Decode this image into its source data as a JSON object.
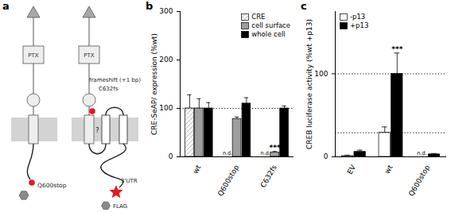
{
  "diagram": {
    "title": "a",
    "receptors": [
      {
        "domain": "PTX",
        "mutation": "Q600stop"
      },
      {
        "domain": "PTX",
        "mutation": "frameshift (+1 bp)",
        "site": "C632fs",
        "unknown": "?",
        "extension": "3'UTR",
        "tag": "FLAG"
      }
    ]
  },
  "chart_data": [
    {
      "type": "bar",
      "title": "b",
      "y_label": "CRE-SeAP/ expression (%wt)",
      "categories": [
        "wt",
        "Q600stop",
        "C632fs"
      ],
      "series": [
        {
          "name": "CRE",
          "color": "#b0b0b0",
          "values": [
            100,
            null,
            null
          ],
          "errors": [
            28,
            null,
            null
          ]
        },
        {
          "name": "cell surface",
          "color": "#9e9e9e",
          "values": [
            100,
            78,
            9
          ],
          "errors": [
            20,
            4,
            2
          ]
        },
        {
          "name": "whole cell",
          "color": "#000000",
          "values": [
            100,
            110,
            100
          ],
          "errors": [
            12,
            12,
            5
          ]
        }
      ],
      "ylim": [
        0,
        300
      ],
      "yticks": [
        0,
        100,
        200,
        300
      ],
      "reference_lines": [
        100
      ],
      "legend": "top-right",
      "annotations": [
        {
          "category": "Q600stop",
          "series": "CRE",
          "text": "n.d."
        },
        {
          "category": "C632fs",
          "series": "CRE",
          "text": "n.d."
        },
        {
          "category": "C632fs",
          "series": "cell surface",
          "text": "***"
        }
      ]
    },
    {
      "type": "bar",
      "title": "c",
      "y_label": "CREB luciferase activity (%wt +p13)",
      "categories": [
        "EV",
        "wt",
        "Q600stop"
      ],
      "series": [
        {
          "name": "-p13",
          "color": "#ffffff",
          "values": [
            1,
            29,
            null
          ],
          "errors": [
            1,
            7,
            null
          ]
        },
        {
          "name": "+p13",
          "color": "#000000",
          "values": [
            6,
            100,
            3
          ],
          "errors": [
            2,
            25,
            1
          ]
        }
      ],
      "ylim": [
        0,
        175
      ],
      "yticks": [
        0,
        100
      ],
      "reference_lines": [
        100,
        29
      ],
      "legend": "top-left",
      "annotations": [
        {
          "category": "Q600stop",
          "series": "-p13",
          "text": "n.d."
        },
        {
          "category": "wt",
          "series": "+p13",
          "text": "***"
        }
      ]
    }
  ]
}
